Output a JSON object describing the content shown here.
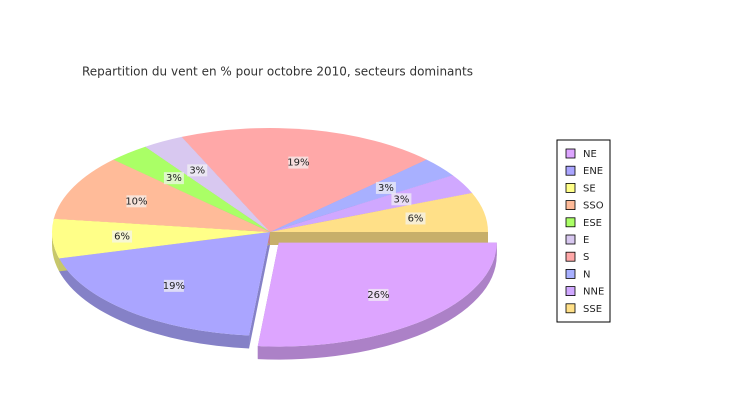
{
  "chart_data": {
    "type": "pie",
    "title": "Repartition du vent en % pour octobre 2010, secteurs dominants",
    "categories": [
      "NE",
      "ENE",
      "SE",
      "SSO",
      "ESE",
      "E",
      "S",
      "N",
      "NNE",
      "SSE"
    ],
    "values": [
      26,
      19,
      6,
      10,
      3,
      3,
      19,
      3,
      3,
      6
    ],
    "value_labels": [
      "26%",
      "19%",
      "6%",
      "10%",
      "3%",
      "3%",
      "19%",
      "3%",
      "3%",
      "6%"
    ],
    "colors": [
      "#dda5ff",
      "#aaa5ff",
      "#ffff88",
      "#ffbb99",
      "#aaff66",
      "#d8c8f0",
      "#ffa8a8",
      "#a8b0ff",
      "#d0a8ff",
      "#ffe088"
    ],
    "legend": "right"
  }
}
